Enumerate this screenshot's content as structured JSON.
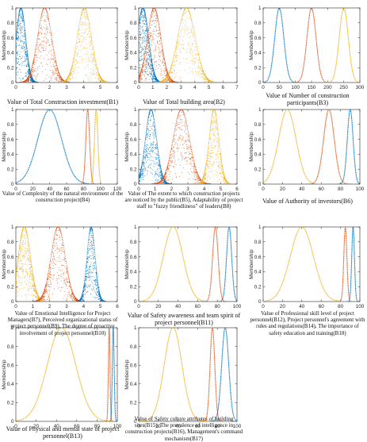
{
  "chart_data": [
    {
      "id": "B1",
      "type": "scatter",
      "ylabel": "Membership",
      "xlim": [
        0,
        6
      ],
      "ylim": [
        0,
        1
      ],
      "xticks": [
        0,
        1,
        2,
        3,
        4,
        5,
        6
      ],
      "yticks": [
        0,
        0.2,
        0.4,
        0.6,
        0.8,
        1
      ],
      "caption": "Value of Total Construction investment(B1)",
      "series": [
        {
          "color": "#0072BD",
          "center": 0.3,
          "width": 0.28,
          "style": "scatter"
        },
        {
          "color": "#D95319",
          "center": 1.7,
          "width": 0.42,
          "style": "scatter"
        },
        {
          "color": "#EDB120",
          "center": 4.05,
          "width": 0.42,
          "style": "scatter"
        }
      ]
    },
    {
      "id": "B2",
      "type": "scatter",
      "ylabel": "Membership",
      "xlim": [
        0,
        7
      ],
      "ylim": [
        0,
        1
      ],
      "xticks": [
        0,
        1,
        2,
        3,
        4,
        5,
        6,
        7
      ],
      "yticks": [
        0,
        0.2,
        0.4,
        0.6,
        0.8,
        1
      ],
      "caption": "Value of Total building area(B2)",
      "series": [
        {
          "color": "#0072BD",
          "center": 0.3,
          "width": 0.4,
          "style": "scatter"
        },
        {
          "color": "#D95319",
          "center": 1.1,
          "width": 0.48,
          "style": "scatter"
        },
        {
          "color": "#EDB120",
          "center": 3.4,
          "width": 0.62,
          "style": "scatter"
        }
      ]
    },
    {
      "id": "B3",
      "type": "line",
      "ylabel": "Membership",
      "xlim": [
        0,
        300
      ],
      "ylim": [
        0,
        1
      ],
      "xticks": [
        0,
        50,
        100,
        150,
        200,
        250,
        300
      ],
      "yticks": [
        0,
        0.2,
        0.4,
        0.6,
        0.8,
        1
      ],
      "caption": "Value of Number of construction participants(B3)",
      "series": [
        {
          "color": "#0072BD",
          "center": 50,
          "width": 14,
          "style": "line"
        },
        {
          "color": "#D95319",
          "center": 150,
          "width": 14,
          "style": "line"
        },
        {
          "color": "#EDB120",
          "center": 250,
          "width": 14,
          "style": "line"
        }
      ]
    },
    {
      "id": "B4",
      "type": "line",
      "ylabel": "Membership",
      "xlim": [
        0,
        120
      ],
      "ylim": [
        0,
        1
      ],
      "xticks": [
        0,
        20,
        40,
        60,
        80,
        100,
        120
      ],
      "yticks": [
        0,
        0.2,
        0.4,
        0.6,
        0.8,
        1
      ],
      "caption": "Value of Complexity of the natural environment of the construction project(B4)",
      "series": [
        {
          "color": "#0072BD",
          "center": 40,
          "width": 14,
          "style": "line"
        },
        {
          "color": "#D95319",
          "center": 85,
          "width": 2.2,
          "style": "line"
        },
        {
          "color": "#EDB120",
          "center": 95,
          "width": 2,
          "style": "line"
        }
      ]
    },
    {
      "id": "B5",
      "type": "scatter",
      "ylabel": "Membership",
      "xlim": [
        0,
        6
      ],
      "ylim": [
        0,
        1
      ],
      "xticks": [
        0,
        1,
        2,
        3,
        4,
        5,
        6
      ],
      "yticks": [
        0,
        0.2,
        0.4,
        0.6,
        0.8,
        1
      ],
      "caption": "Value of The extent to which construction projects are noticed by the public(B5), Adaptability of project staff to \"fuzzy friendliness\" of leaders(B8)",
      "series": [
        {
          "color": "#0072BD",
          "center": 0.75,
          "width": 0.34,
          "style": "scatter"
        },
        {
          "color": "#D95319",
          "center": 2.6,
          "width": 0.5,
          "style": "scatter"
        },
        {
          "color": "#EDB120",
          "center": 4.6,
          "width": 0.3,
          "style": "scatter"
        }
      ]
    },
    {
      "id": "B6",
      "type": "line",
      "ylabel": "Membership",
      "xlim": [
        0,
        100
      ],
      "ylim": [
        0,
        1
      ],
      "xticks": [
        0,
        20,
        40,
        60,
        80,
        100
      ],
      "yticks": [
        0,
        0.2,
        0.4,
        0.6,
        0.8,
        1
      ],
      "caption": "Value of Authority of investors(B6)",
      "series": [
        {
          "color": "#EDB120",
          "center": 25,
          "width": 9,
          "style": "line"
        },
        {
          "color": "#D95319",
          "center": 68,
          "width": 5.5,
          "style": "line"
        },
        {
          "color": "#0072BD",
          "center": 90,
          "width": 3,
          "style": "line"
        }
      ]
    },
    {
      "id": "B7",
      "type": "scatter",
      "ylabel": "Membership",
      "xlim": [
        0,
        6
      ],
      "ylim": [
        0,
        1
      ],
      "xticks": [
        0,
        1,
        2,
        3,
        4,
        5,
        6
      ],
      "yticks": [
        0,
        0.2,
        0.4,
        0.6,
        0.8,
        1
      ],
      "caption": "Value of Emotional Intelligence for Project Managers(B7), Perceived organizational status of project personnel(B9), The degree of proactive involvement of project personnel(B10)",
      "series": [
        {
          "color": "#EDB120",
          "center": 0.5,
          "width": 0.36,
          "style": "scatter"
        },
        {
          "color": "#D95319",
          "center": 2.5,
          "width": 0.42,
          "style": "scatter"
        },
        {
          "color": "#0072BD",
          "center": 4.45,
          "width": 0.24,
          "style": "scatter"
        }
      ]
    },
    {
      "id": "B11",
      "type": "line",
      "ylabel": "Membership",
      "xlim": [
        0,
        100
      ],
      "ylim": [
        0,
        1
      ],
      "xticks": [
        0,
        20,
        40,
        60,
        80,
        100
      ],
      "yticks": [
        0,
        0.2,
        0.4,
        0.6,
        0.8,
        1
      ],
      "caption": "Value of Safety awareness and team spirit of project personnel(B11)",
      "series": [
        {
          "color": "#EDB120",
          "center": 35,
          "width": 10,
          "style": "line"
        },
        {
          "color": "#D95319",
          "center": 78,
          "width": 2.8,
          "style": "line"
        },
        {
          "color": "#0072BD",
          "center": 92,
          "width": 2.6,
          "style": "line"
        }
      ]
    },
    {
      "id": "B12",
      "type": "line",
      "ylabel": "Membership",
      "xlim": [
        0,
        100
      ],
      "ylim": [
        0,
        1
      ],
      "xticks": [
        0,
        20,
        40,
        60,
        80,
        100
      ],
      "yticks": [
        0,
        0.2,
        0.4,
        0.6,
        0.8,
        1
      ],
      "caption": "Value of Professional skill level of project personnel(B12), Project personnel's agreement with rules and regulations(B14), The importance of safety education and training(B18)",
      "series": [
        {
          "color": "#EDB120",
          "center": 40,
          "width": 12,
          "style": "line"
        },
        {
          "color": "#D95319",
          "center": 85,
          "width": 1.6,
          "style": "line"
        },
        {
          "color": "#0072BD",
          "center": 93,
          "width": 1.4,
          "style": "line"
        }
      ]
    },
    {
      "id": "B13",
      "type": "line",
      "ylabel": "Membership",
      "xlim": [
        0,
        100
      ],
      "ylim": [
        0,
        1
      ],
      "xticks": [
        0,
        20,
        40,
        60,
        80,
        100
      ],
      "yticks": [
        0,
        0.2,
        0.4,
        0.6,
        0.8,
        1
      ],
      "caption": "Value of Physical and mental state of project personnel(B13)",
      "series": [
        {
          "color": "#EDB120",
          "center": 45,
          "width": 14,
          "style": "line"
        },
        {
          "color": "#D95319",
          "center": 92,
          "width": 0.8,
          "style": "line"
        },
        {
          "color": "#0072BD",
          "center": 96,
          "width": 0.9,
          "style": "line"
        }
      ]
    },
    {
      "id": "B15",
      "type": "line",
      "ylabel": "Membership",
      "xlim": [
        0,
        100
      ],
      "ylim": [
        0,
        1
      ],
      "xticks": [
        0,
        20,
        40,
        60,
        80,
        100
      ],
      "yticks": [
        0,
        0.2,
        0.4,
        0.6,
        0.8,
        1
      ],
      "caption": "Value of Safety culture attributes of building sites(B15), The prevalence of intelligence in construction projects(B16), Management's command mechanism(B17)",
      "series": [
        {
          "color": "#EDB120",
          "center": 35,
          "width": 9,
          "style": "line"
        },
        {
          "color": "#D95319",
          "center": 75,
          "width": 2.4,
          "style": "line"
        },
        {
          "color": "#0072BD",
          "center": 88,
          "width": 3.6,
          "style": "line"
        }
      ]
    }
  ]
}
